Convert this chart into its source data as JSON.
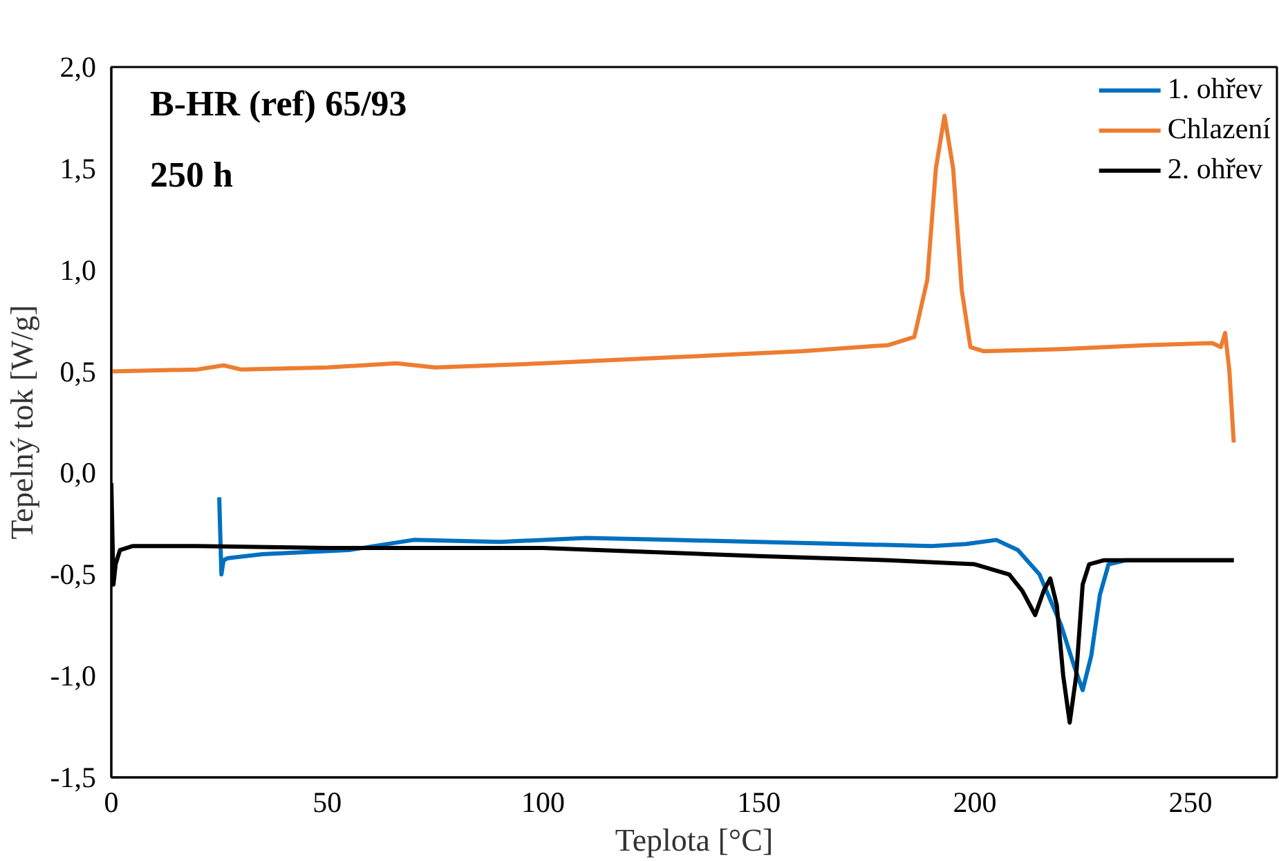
{
  "chart_data": {
    "type": "line",
    "title": "B-HR (ref) 65/93",
    "subtitle": "250 h",
    "xlabel": "Teplota [°C]",
    "ylabel": "Tepelný tok [W/g]",
    "xlim": [
      0,
      270
    ],
    "xticks": [
      0,
      50,
      100,
      150,
      200,
      250
    ],
    "ylim": [
      -1.5,
      2.0
    ],
    "yticks": [
      {
        "value": -1.5,
        "label": "-1,5"
      },
      {
        "value": -1.0,
        "label": "-1,0"
      },
      {
        "value": -0.5,
        "label": "-0,5"
      },
      {
        "value": 0.0,
        "label": "0,0"
      },
      {
        "value": 0.5,
        "label": "0,5"
      },
      {
        "value": 1.0,
        "label": "1,0"
      },
      {
        "value": 1.5,
        "label": "1,5"
      },
      {
        "value": 2.0,
        "label": "2,0"
      }
    ],
    "grid": false,
    "legend": "top right",
    "line_style": "solid",
    "series": [
      {
        "name": "1. ohřev",
        "color": "#0070c0",
        "x": [
          25,
          25.5,
          26,
          27,
          35,
          45,
          55,
          70,
          90,
          110,
          130,
          150,
          170,
          190,
          198,
          205,
          210,
          215,
          220,
          223,
          225,
          227,
          229,
          231,
          235,
          245,
          260
        ],
        "values": [
          -0.12,
          -0.5,
          -0.43,
          -0.42,
          -0.4,
          -0.39,
          -0.38,
          -0.33,
          -0.34,
          -0.32,
          -0.33,
          -0.34,
          -0.35,
          -0.36,
          -0.35,
          -0.33,
          -0.38,
          -0.5,
          -0.75,
          -0.95,
          -1.07,
          -0.9,
          -0.6,
          -0.45,
          -0.43,
          -0.43,
          -0.43
        ]
      },
      {
        "name": "Chlazení",
        "color": "#ed7d31",
        "x": [
          0,
          20,
          26,
          30,
          50,
          66,
          75,
          100,
          130,
          160,
          180,
          186,
          189,
          191,
          193,
          195,
          197,
          199,
          202,
          220,
          240,
          255,
          257,
          258,
          259,
          260
        ],
        "values": [
          0.5,
          0.51,
          0.53,
          0.51,
          0.52,
          0.54,
          0.52,
          0.54,
          0.57,
          0.6,
          0.63,
          0.67,
          0.95,
          1.5,
          1.76,
          1.5,
          0.9,
          0.62,
          0.6,
          0.61,
          0.63,
          0.64,
          0.62,
          0.69,
          0.5,
          0.15
        ]
      },
      {
        "name": "2. ohřev",
        "color": "#000000",
        "x": [
          0,
          0.5,
          1,
          2,
          5,
          20,
          50,
          100,
          150,
          180,
          200,
          208,
          211,
          214,
          216,
          217.5,
          219,
          220.5,
          222,
          223.5,
          225,
          226.5,
          230,
          245,
          260
        ],
        "values": [
          -0.05,
          -0.55,
          -0.45,
          -0.38,
          -0.36,
          -0.36,
          -0.37,
          -0.37,
          -0.41,
          -0.43,
          -0.45,
          -0.5,
          -0.58,
          -0.7,
          -0.58,
          -0.52,
          -0.65,
          -1.0,
          -1.23,
          -1.0,
          -0.55,
          -0.45,
          -0.43,
          -0.43,
          -0.43
        ]
      }
    ]
  }
}
